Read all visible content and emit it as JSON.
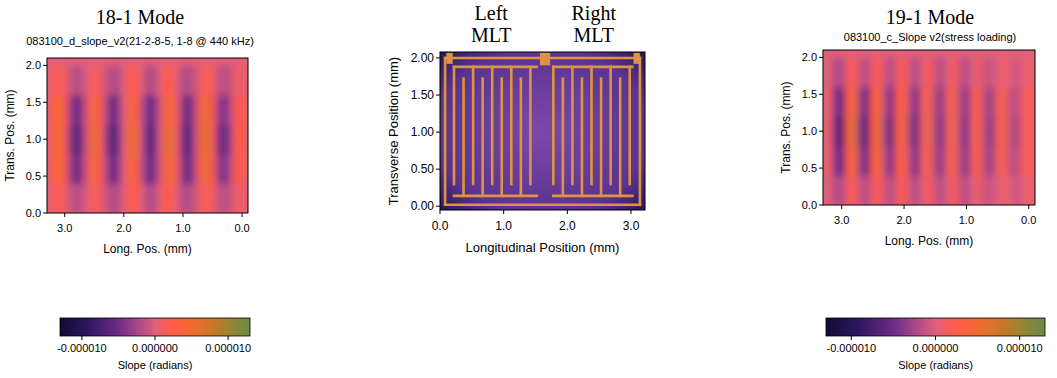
{
  "chart_data": [
    {
      "type": "heatmap",
      "title": "18-1 Mode",
      "subtitle": "083100_d_slope_v2(21-2-8-5, 1-8 @ 440 kHz)",
      "x_label": "Long. Pos. (mm)",
      "y_label": "Trans. Pos. (mm)",
      "xlim": [
        3.3,
        -0.1
      ],
      "ylim": [
        0,
        2.1
      ],
      "xticks": [
        {
          "value": 3,
          "label": "3.0"
        },
        {
          "value": 2,
          "label": "2.0"
        },
        {
          "value": 1,
          "label": "1.0"
        },
        {
          "value": 0,
          "label": "0.0"
        }
      ],
      "yticks": [
        {
          "value": 0,
          "label": "0.0"
        },
        {
          "value": 0.5,
          "label": "0.5"
        },
        {
          "value": 1,
          "label": "1.0"
        },
        {
          "value": 1.5,
          "label": "1.5"
        },
        {
          "value": 2,
          "label": "2.0"
        }
      ],
      "x": [
        3.2,
        3.1,
        3.0,
        2.9,
        2.8,
        2.7,
        2.6,
        2.5,
        2.4,
        2.3,
        2.2,
        2.1,
        2.0,
        1.9,
        1.8,
        1.7,
        1.6,
        1.5,
        1.4,
        1.3,
        1.2,
        1.1,
        1.0,
        0.9,
        0.8,
        0.7,
        0.6,
        0.5,
        0.4,
        0.3,
        0.2,
        0.1,
        0
      ],
      "y": [
        0.2,
        0.6,
        1.0,
        1.4,
        1.8
      ],
      "cells": [
        [
          1e-06,
          2e-06,
          1e-06,
          -1e-06,
          -2e-06,
          -1e-06,
          0,
          2e-06,
          1e-06,
          -1e-06,
          -2e-06,
          -2e-06,
          0,
          2e-06,
          2e-06,
          0,
          -2e-06,
          -2e-06,
          0,
          2e-06,
          2e-06,
          0,
          -2e-06,
          -2e-06,
          -1e-06,
          1e-06,
          2e-06,
          1e-06,
          -1e-06,
          -2e-06,
          -1e-06,
          1e-06,
          1e-06
        ],
        [
          2e-06,
          5e-06,
          2e-06,
          -3e-06,
          -6e-06,
          -3e-06,
          1e-06,
          5e-06,
          2e-06,
          -2e-06,
          -6e-06,
          -4e-06,
          0,
          4e-06,
          4e-06,
          -1e-06,
          -5e-06,
          -5e-06,
          -1e-06,
          4e-06,
          5e-06,
          1e-06,
          -4e-06,
          -6e-06,
          -2e-06,
          3e-06,
          6e-06,
          2e-06,
          -3e-06,
          -5e-06,
          -2e-06,
          2e-06,
          2e-06
        ],
        [
          2e-06,
          6e-06,
          2e-06,
          -4e-06,
          -7e-06,
          -4e-06,
          1e-06,
          6e-06,
          3e-06,
          -3e-06,
          -7e-06,
          -5e-06,
          0,
          5e-06,
          5e-06,
          -1e-06,
          -6e-06,
          -6e-06,
          -1e-06,
          5e-06,
          6e-06,
          1e-06,
          -5e-06,
          -7e-06,
          -2e-06,
          4e-06,
          7e-06,
          2e-06,
          -4e-06,
          -6e-06,
          -3e-06,
          3e-06,
          2e-06
        ],
        [
          2e-06,
          5e-06,
          2e-06,
          -3e-06,
          -6e-06,
          -3e-06,
          1e-06,
          5e-06,
          2e-06,
          -2e-06,
          -6e-06,
          -4e-06,
          0,
          4e-06,
          4e-06,
          -1e-06,
          -5e-06,
          -5e-06,
          -1e-06,
          4e-06,
          5e-06,
          1e-06,
          -4e-06,
          -6e-06,
          -2e-06,
          3e-06,
          6e-06,
          2e-06,
          -3e-06,
          -5e-06,
          -2e-06,
          2e-06,
          2e-06
        ],
        [
          1e-06,
          2e-06,
          1e-06,
          -1e-06,
          -2e-06,
          -1e-06,
          0,
          2e-06,
          1e-06,
          -1e-06,
          -2e-06,
          -2e-06,
          0,
          2e-06,
          2e-06,
          0,
          -2e-06,
          -2e-06,
          0,
          2e-06,
          2e-06,
          0,
          -2e-06,
          -2e-06,
          -1e-06,
          1e-06,
          2e-06,
          1e-06,
          -1e-06,
          -2e-06,
          -1e-06,
          1e-06,
          1e-06
        ]
      ],
      "colorbar": {
        "label": "Slope (radians)",
        "lim": [
          -1.3e-05,
          1.3e-05
        ],
        "ticks": [
          {
            "value": -1e-05,
            "label": "-0.000010"
          },
          {
            "value": 0,
            "label": "0.000000"
          },
          {
            "value": 1e-05,
            "label": "0.000010"
          }
        ]
      }
    },
    {
      "type": "image",
      "titles": [
        "Left MLT",
        "Right MLT"
      ],
      "x_label": "Longitudinal Position (mm)",
      "y_label": "Transverse Position (mm)",
      "xlim": [
        0,
        3.22
      ],
      "ylim": [
        -0.05,
        2.08
      ],
      "xticks": [
        {
          "value": 0,
          "label": "0.0"
        },
        {
          "value": 1,
          "label": "1.0"
        },
        {
          "value": 2,
          "label": "2.0"
        },
        {
          "value": 3,
          "label": "3.0"
        }
      ],
      "yticks": [
        {
          "value": 0,
          "label": "0.00"
        },
        {
          "value": 0.5,
          "label": "0.50"
        },
        {
          "value": 1,
          "label": "1.00"
        },
        {
          "value": 1.5,
          "label": "1.50"
        },
        {
          "value": 2,
          "label": "2.00"
        }
      ]
    },
    {
      "type": "heatmap",
      "title": "19-1 Mode",
      "subtitle": "083100_c_Slope v2(stress loading)",
      "x_label": "Long. Pos. (mm)",
      "y_label": "Trans. Pos. (mm)",
      "xlim": [
        3.3,
        -0.1
      ],
      "ylim": [
        0,
        2.1
      ],
      "xticks": [
        {
          "value": 3,
          "label": "3.0"
        },
        {
          "value": 2,
          "label": "2.0"
        },
        {
          "value": 1,
          "label": "1.0"
        },
        {
          "value": 0,
          "label": "0.0"
        }
      ],
      "yticks": [
        {
          "value": 0,
          "label": "0.0"
        },
        {
          "value": 0.5,
          "label": "0.5"
        },
        {
          "value": 1,
          "label": "1.0"
        },
        {
          "value": 1.5,
          "label": "1.5"
        },
        {
          "value": 2,
          "label": "2.0"
        }
      ],
      "x": [
        3.2,
        3.1,
        3.0,
        2.9,
        2.8,
        2.7,
        2.6,
        2.5,
        2.4,
        2.3,
        2.2,
        2.1,
        2.0,
        1.9,
        1.8,
        1.7,
        1.6,
        1.5,
        1.4,
        1.3,
        1.2,
        1.1,
        1.0,
        0.9,
        0.8,
        0.7,
        0.6,
        0.5,
        0.4,
        0.3,
        0.2,
        0.1,
        0
      ],
      "y": [
        0.2,
        0.6,
        1.0,
        1.4,
        1.8
      ],
      "cells": [
        [
          0,
          -2e-06,
          -2e-06,
          1e-06,
          2e-06,
          -1e-06,
          -2e-06,
          1e-06,
          2e-06,
          -1e-06,
          -2e-06,
          1e-06,
          2e-06,
          -1e-06,
          -2e-06,
          0,
          2e-06,
          -1e-06,
          -2e-06,
          0,
          2e-06,
          -1e-06,
          -2e-06,
          0,
          1e-06,
          -1e-06,
          -1e-06,
          0,
          1e-06,
          0,
          -1e-06,
          0,
          1e-06
        ],
        [
          1e-06,
          -4e-06,
          -6e-06,
          2e-06,
          5e-06,
          -3e-06,
          -6e-06,
          2e-06,
          5e-06,
          -2e-06,
          -5e-06,
          2e-06,
          4e-06,
          -2e-06,
          -5e-06,
          1e-06,
          4e-06,
          -2e-06,
          -4e-06,
          1e-06,
          4e-06,
          -2e-06,
          -4e-06,
          1e-06,
          3e-06,
          -2e-06,
          -3e-06,
          1e-06,
          3e-06,
          -1e-06,
          -2e-06,
          1e-06,
          2e-06
        ],
        [
          1e-06,
          -5e-06,
          -8e-06,
          3e-06,
          6e-06,
          -4e-06,
          -7e-06,
          2e-06,
          6e-06,
          -3e-06,
          -6e-06,
          2e-06,
          5e-06,
          -3e-06,
          -6e-06,
          1e-06,
          5e-06,
          -2e-06,
          -5e-06,
          1e-06,
          5e-06,
          -2e-06,
          -5e-06,
          1e-06,
          4e-06,
          -2e-06,
          -4e-06,
          1e-06,
          4e-06,
          -1e-06,
          -3e-06,
          1e-06,
          2e-06
        ],
        [
          1e-06,
          -4e-06,
          -6e-06,
          2e-06,
          5e-06,
          -3e-06,
          -6e-06,
          2e-06,
          5e-06,
          -2e-06,
          -5e-06,
          2e-06,
          4e-06,
          -2e-06,
          -5e-06,
          1e-06,
          4e-06,
          -2e-06,
          -4e-06,
          1e-06,
          4e-06,
          -2e-06,
          -4e-06,
          1e-06,
          3e-06,
          -2e-06,
          -3e-06,
          1e-06,
          3e-06,
          -1e-06,
          -2e-06,
          1e-06,
          2e-06
        ],
        [
          0,
          -2e-06,
          -2e-06,
          1e-06,
          2e-06,
          -1e-06,
          -2e-06,
          1e-06,
          2e-06,
          -1e-06,
          -2e-06,
          1e-06,
          2e-06,
          -1e-06,
          -2e-06,
          0,
          2e-06,
          -1e-06,
          -2e-06,
          0,
          2e-06,
          -1e-06,
          -2e-06,
          0,
          1e-06,
          -1e-06,
          -1e-06,
          0,
          1e-06,
          0,
          -1e-06,
          0,
          1e-06
        ]
      ],
      "colorbar": {
        "label": "Slope (radians)",
        "lim": [
          -1.3e-05,
          1.3e-05
        ],
        "ticks": [
          {
            "value": -1e-05,
            "label": "-0.000010"
          },
          {
            "value": 0,
            "label": "0.000000"
          },
          {
            "value": 1e-05,
            "label": "0.000010"
          }
        ]
      }
    }
  ]
}
